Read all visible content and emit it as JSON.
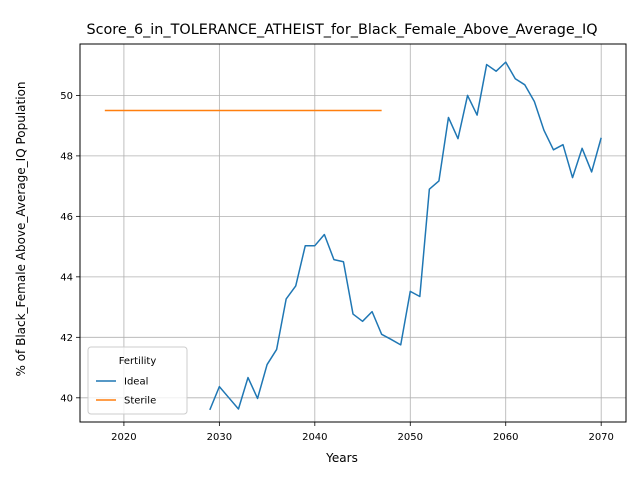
{
  "chart_data": {
    "type": "line",
    "title": "Score_6_in_TOLERANCE_ATHEIST_for_Black_Female_Above_Average_IQ",
    "xlabel": "Years",
    "ylabel": "% of Black_Female Above_Average_IQ Population",
    "xlim": [
      2015.4,
      2072.6
    ],
    "ylim": [
      39.2,
      51.7
    ],
    "xticks": [
      2020,
      2030,
      2040,
      2050,
      2060,
      2070
    ],
    "yticks": [
      40,
      42,
      44,
      46,
      48,
      50
    ],
    "grid": true,
    "legend": {
      "title": "Fertility",
      "placement": "lower-left"
    },
    "series": [
      {
        "name": "Ideal",
        "color": "#1f77b4",
        "x": [
          2029,
          2030,
          2031,
          2032,
          2033,
          2034,
          2035,
          2036,
          2037,
          2038,
          2039,
          2040,
          2041,
          2042,
          2043,
          2044,
          2045,
          2046,
          2047,
          2048,
          2049,
          2050,
          2051,
          2052,
          2053,
          2054,
          2055,
          2056,
          2057,
          2058,
          2059,
          2060,
          2061,
          2062,
          2063,
          2064,
          2065,
          2066,
          2067,
          2068,
          2069,
          2070
        ],
        "values": [
          39.6,
          40.37,
          40.0,
          39.63,
          40.67,
          39.98,
          41.1,
          41.6,
          43.27,
          43.7,
          45.03,
          45.03,
          45.4,
          44.57,
          44.5,
          42.77,
          42.53,
          42.85,
          42.1,
          41.93,
          41.75,
          43.52,
          43.35,
          46.9,
          47.17,
          49.27,
          48.57,
          50.0,
          49.35,
          51.02,
          50.8,
          51.1,
          50.55,
          50.35,
          49.8,
          48.85,
          48.2,
          48.37,
          47.28,
          48.25,
          47.47,
          48.6
        ]
      },
      {
        "name": "Sterile",
        "color": "#ff7f0e",
        "x": [
          2018,
          2019,
          2020,
          2021,
          2022,
          2023,
          2024,
          2025,
          2026,
          2027,
          2028,
          2029,
          2030,
          2031,
          2032,
          2033,
          2034,
          2035,
          2036,
          2037,
          2038,
          2039,
          2040,
          2041,
          2042,
          2043,
          2044,
          2045,
          2046,
          2047
        ],
        "values": [
          49.5,
          49.5,
          49.5,
          49.5,
          49.5,
          49.5,
          49.5,
          49.5,
          49.5,
          49.5,
          49.5,
          49.5,
          49.5,
          49.5,
          49.5,
          49.5,
          49.5,
          49.5,
          49.5,
          49.5,
          49.5,
          49.5,
          49.5,
          49.5,
          49.5,
          49.5,
          49.5,
          49.5,
          49.5,
          49.5
        ]
      }
    ]
  }
}
